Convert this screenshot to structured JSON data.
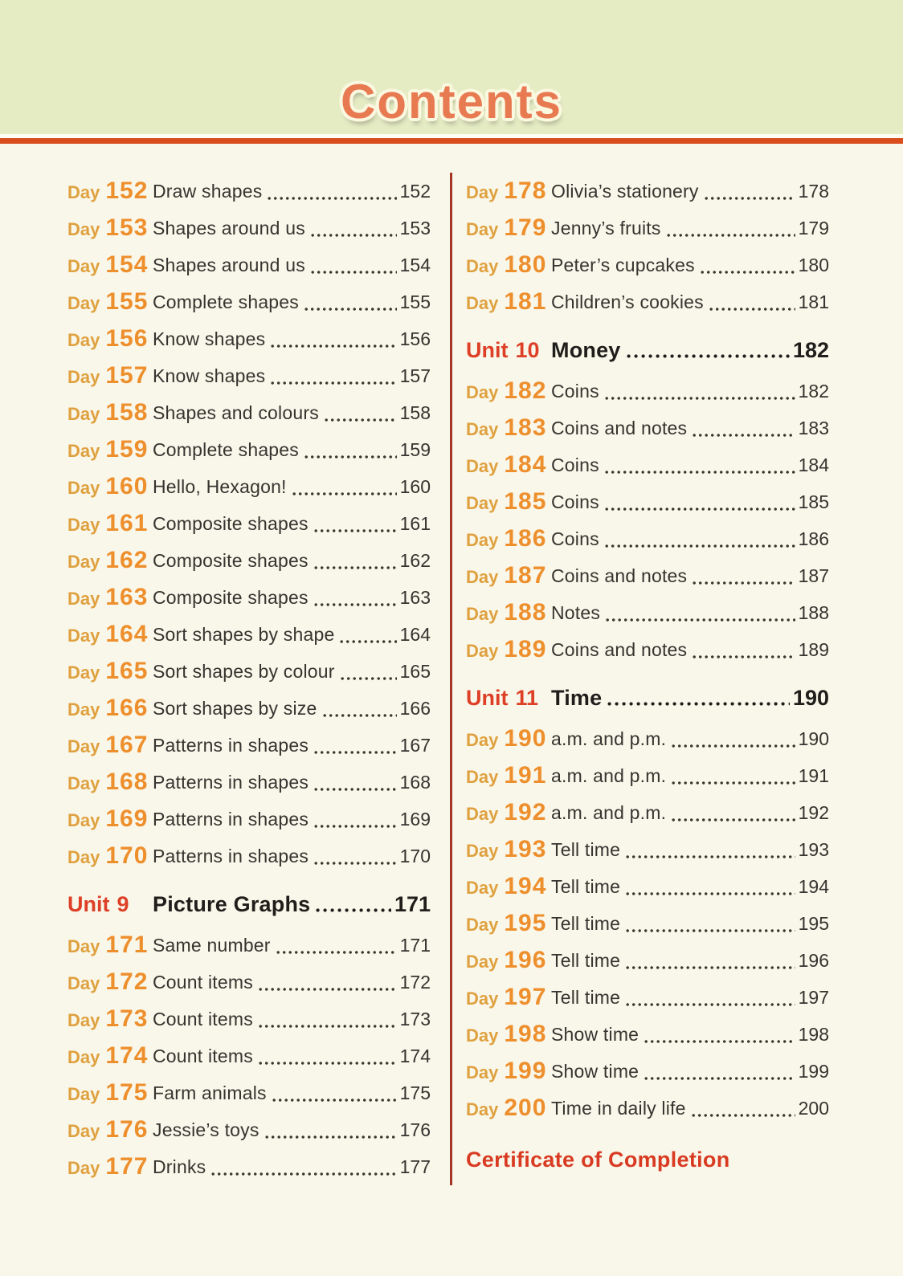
{
  "header": {
    "title": "Contents"
  },
  "colors": {
    "header_bg": "#e5ecc4",
    "page_bg": "#f9f7ea",
    "title_text": "#e87a52",
    "accent_rule": "#da4d1d",
    "day_label": "#dfa13f",
    "day_number": "#ee8f2d",
    "unit_label": "#dd3f27",
    "entry_text": "#35342f",
    "column_divider": "#a43524",
    "certificate_text": "#d93b22"
  },
  "columns": {
    "left": [
      {
        "kind": "day",
        "label": "Day",
        "num": "152",
        "title": "Draw shapes",
        "page": "152"
      },
      {
        "kind": "day",
        "label": "Day",
        "num": "153",
        "title": "Shapes around us",
        "page": "153"
      },
      {
        "kind": "day",
        "label": "Day",
        "num": "154",
        "title": "Shapes around us",
        "page": "154"
      },
      {
        "kind": "day",
        "label": "Day",
        "num": "155",
        "title": "Complete shapes",
        "page": "155"
      },
      {
        "kind": "day",
        "label": "Day",
        "num": "156",
        "title": "Know shapes",
        "page": "156"
      },
      {
        "kind": "day",
        "label": "Day",
        "num": "157",
        "title": "Know shapes",
        "page": "157"
      },
      {
        "kind": "day",
        "label": "Day",
        "num": "158",
        "title": "Shapes and colours",
        "page": "158"
      },
      {
        "kind": "day",
        "label": "Day",
        "num": "159",
        "title": "Complete shapes",
        "page": "159"
      },
      {
        "kind": "day",
        "label": "Day",
        "num": "160",
        "title": "Hello, Hexagon!",
        "page": "160"
      },
      {
        "kind": "day",
        "label": "Day",
        "num": "161",
        "title": "Composite shapes",
        "page": "161"
      },
      {
        "kind": "day",
        "label": "Day",
        "num": "162",
        "title": "Composite shapes",
        "page": "162"
      },
      {
        "kind": "day",
        "label": "Day",
        "num": "163",
        "title": "Composite shapes",
        "page": "163"
      },
      {
        "kind": "day",
        "label": "Day",
        "num": "164",
        "title": "Sort shapes by shape",
        "page": "164"
      },
      {
        "kind": "day",
        "label": "Day",
        "num": "165",
        "title": "Sort shapes by colour",
        "page": "165"
      },
      {
        "kind": "day",
        "label": "Day",
        "num": "166",
        "title": "Sort shapes by size",
        "page": "166"
      },
      {
        "kind": "day",
        "label": "Day",
        "num": "167",
        "title": "Patterns in shapes",
        "page": "167"
      },
      {
        "kind": "day",
        "label": "Day",
        "num": "168",
        "title": "Patterns in shapes",
        "page": "168"
      },
      {
        "kind": "day",
        "label": "Day",
        "num": "169",
        "title": "Patterns in shapes",
        "page": "169"
      },
      {
        "kind": "day",
        "label": "Day",
        "num": "170",
        "title": "Patterns in shapes",
        "page": "170"
      },
      {
        "kind": "unit",
        "label": "Unit",
        "num": "9",
        "title": "Picture Graphs",
        "page": "171"
      },
      {
        "kind": "day",
        "label": "Day",
        "num": "171",
        "title": "Same number",
        "page": "171"
      },
      {
        "kind": "day",
        "label": "Day",
        "num": "172",
        "title": "Count items",
        "page": "172"
      },
      {
        "kind": "day",
        "label": "Day",
        "num": "173",
        "title": "Count items",
        "page": "173"
      },
      {
        "kind": "day",
        "label": "Day",
        "num": "174",
        "title": "Count items",
        "page": "174"
      },
      {
        "kind": "day",
        "label": "Day",
        "num": "175",
        "title": "Farm animals",
        "page": "175"
      },
      {
        "kind": "day",
        "label": "Day",
        "num": "176",
        "title": "Jessie’s toys",
        "page": "176"
      },
      {
        "kind": "day",
        "label": "Day",
        "num": "177",
        "title": "Drinks",
        "page": "177"
      }
    ],
    "right": [
      {
        "kind": "day",
        "label": "Day",
        "num": "178",
        "title": "Olivia’s stationery",
        "page": "178"
      },
      {
        "kind": "day",
        "label": "Day",
        "num": "179",
        "title": "Jenny’s fruits",
        "page": "179"
      },
      {
        "kind": "day",
        "label": "Day",
        "num": "180",
        "title": "Peter’s cupcakes",
        "page": "180"
      },
      {
        "kind": "day",
        "label": "Day",
        "num": "181",
        "title": "Children’s cookies",
        "page": "181"
      },
      {
        "kind": "unit",
        "label": "Unit",
        "num": "10",
        "title": "Money",
        "page": "182"
      },
      {
        "kind": "day",
        "label": "Day",
        "num": "182",
        "title": "Coins",
        "page": "182"
      },
      {
        "kind": "day",
        "label": "Day",
        "num": "183",
        "title": "Coins and notes",
        "page": "183"
      },
      {
        "kind": "day",
        "label": "Day",
        "num": "184",
        "title": "Coins",
        "page": "184"
      },
      {
        "kind": "day",
        "label": "Day",
        "num": "185",
        "title": "Coins",
        "page": "185"
      },
      {
        "kind": "day",
        "label": "Day",
        "num": "186",
        "title": "Coins",
        "page": "186"
      },
      {
        "kind": "day",
        "label": "Day",
        "num": "187",
        "title": "Coins and notes",
        "page": "187"
      },
      {
        "kind": "day",
        "label": "Day",
        "num": "188",
        "title": "Notes",
        "page": "188"
      },
      {
        "kind": "day",
        "label": "Day",
        "num": "189",
        "title": "Coins and notes",
        "page": "189"
      },
      {
        "kind": "unit",
        "label": "Unit",
        "num": "11",
        "title": "Time",
        "page": "190"
      },
      {
        "kind": "day",
        "label": "Day",
        "num": "190",
        "title": "a.m. and p.m.",
        "page": "190"
      },
      {
        "kind": "day",
        "label": "Day",
        "num": "191",
        "title": "a.m. and p.m.",
        "page": "191"
      },
      {
        "kind": "day",
        "label": "Day",
        "num": "192",
        "title": "a.m. and p.m.",
        "page": "192"
      },
      {
        "kind": "day",
        "label": "Day",
        "num": "193",
        "title": "Tell time",
        "page": "193"
      },
      {
        "kind": "day",
        "label": "Day",
        "num": "194",
        "title": "Tell time",
        "page": "194"
      },
      {
        "kind": "day",
        "label": "Day",
        "num": "195",
        "title": "Tell time",
        "page": "195"
      },
      {
        "kind": "day",
        "label": "Day",
        "num": "196",
        "title": "Tell time",
        "page": "196"
      },
      {
        "kind": "day",
        "label": "Day",
        "num": "197",
        "title": "Tell time",
        "page": "197"
      },
      {
        "kind": "day",
        "label": "Day",
        "num": "198",
        "title": "Show time",
        "page": "198"
      },
      {
        "kind": "day",
        "label": "Day",
        "num": "199",
        "title": "Show time",
        "page": "199"
      },
      {
        "kind": "day",
        "label": "Day",
        "num": "200",
        "title": "Time in daily life",
        "page": "200"
      },
      {
        "kind": "footer",
        "title": "Certificate of Completion"
      }
    ]
  }
}
